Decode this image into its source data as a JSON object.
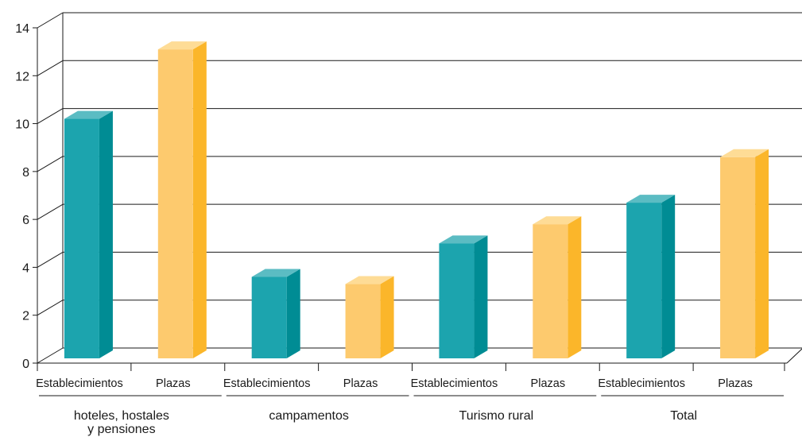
{
  "chart_data": {
    "type": "bar",
    "style": "3d",
    "categories": [
      {
        "group": "hoteles, hostales y pensiones",
        "group_lines": [
          "hoteles, hostales",
          "y pensiones"
        ],
        "label": "Establecimientos",
        "value": 10.0,
        "series": "establecimientos"
      },
      {
        "group": "hoteles, hostales y pensiones",
        "group_lines": [
          "hoteles, hostales",
          "y pensiones"
        ],
        "label": "Plazas",
        "value": 12.9,
        "series": "plazas"
      },
      {
        "group": "campamentos",
        "group_lines": [
          "campamentos"
        ],
        "label": "Establecimientos",
        "value": 3.4,
        "series": "establecimientos"
      },
      {
        "group": "campamentos",
        "group_lines": [
          "campamentos"
        ],
        "label": "Plazas",
        "value": 3.1,
        "series": "plazas"
      },
      {
        "group": "Turismo rural",
        "group_lines": [
          "Turismo rural"
        ],
        "label": "Establecimientos",
        "value": 4.8,
        "series": "establecimientos"
      },
      {
        "group": "Turismo rural",
        "group_lines": [
          "Turismo rural"
        ],
        "label": "Plazas",
        "value": 5.6,
        "series": "plazas"
      },
      {
        "group": "Total",
        "group_lines": [
          "Total"
        ],
        "label": "Establecimientos",
        "value": 6.5,
        "series": "establecimientos"
      },
      {
        "group": "Total",
        "group_lines": [
          "Total"
        ],
        "label": "Plazas",
        "value": 8.4,
        "series": "plazas"
      }
    ],
    "groups": [
      {
        "lines": [
          "hoteles, hostales",
          "y pensiones"
        ]
      },
      {
        "lines": [
          "campamentos"
        ]
      },
      {
        "lines": [
          "Turismo rural"
        ]
      },
      {
        "lines": [
          "Total"
        ]
      }
    ],
    "y_ticks": [
      "0",
      "2",
      "4",
      "6",
      "8",
      "10",
      "12",
      "14"
    ],
    "ylim": [
      0,
      14
    ],
    "grid": true,
    "legend": "none",
    "colors": {
      "establecimientos": {
        "front": "#1ca4ae",
        "side": "#008c94",
        "top": "#5bbcc3"
      },
      "plazas": {
        "front": "#fdca6e",
        "side": "#fbb62a",
        "top": "#fedc96"
      },
      "axis": "#1a1a1a"
    }
  }
}
